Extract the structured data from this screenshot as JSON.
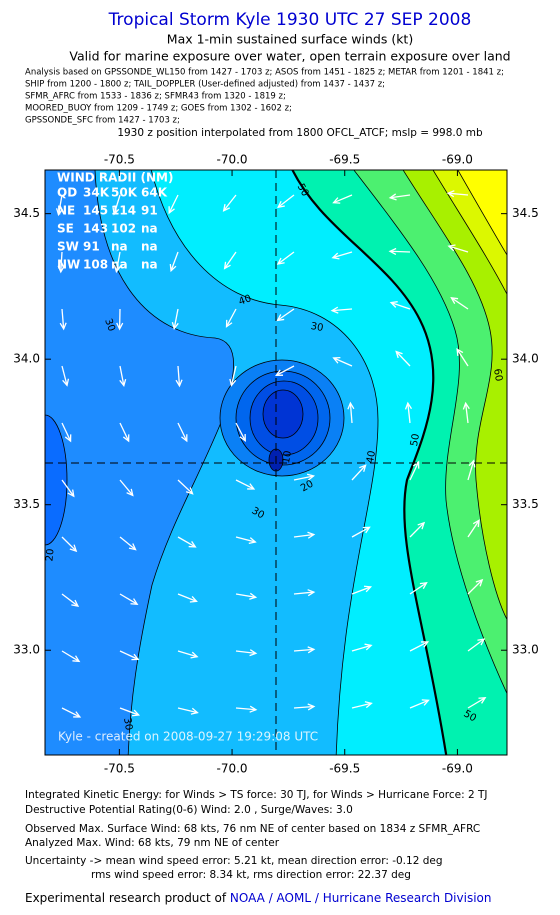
{
  "header": {
    "title": "Tropical Storm Kyle 1930 UTC 27 SEP 2008",
    "subtitle": "Max 1-min sustained surface winds (kt)",
    "validity": "Valid for marine exposure over water, open terrain exposure over land",
    "sources": [
      "Analysis based on  GPSSONDE_WL150 from 1427 - 1703 z;  ASOS from 1451 - 1825 z;  METAR from 1201 - 1841 z;",
      "SHIP from 1200 - 1800 z;  TAIL_DOPPLER (User-defined adjusted) from 1437 - 1437 z;",
      "SFMR_AFRC from 1533 - 1836 z;  SFMR43 from 1320 - 1819 z;",
      "MOORED_BUOY from 1209 - 1749 z;  GOES from 1302 - 1602 z;",
      "GPSSONDE_SFC from 1427 - 1703 z;"
    ],
    "position_note": "1930 z position interpolated from 1800 OFCL_ATCF; mslp = 998.0 mb"
  },
  "map": {
    "xlim": [
      -70.83,
      -68.78
    ],
    "ylim": [
      32.64,
      34.65
    ],
    "xticks": [
      -70.5,
      {
        "value": -70,
        "label": "-70.0"
      },
      -69.5,
      {
        "value": -69,
        "label": "-69.0"
      }
    ],
    "yticks": [
      {
        "value": 33,
        "label": "33.0"
      },
      33.5,
      {
        "value": 34,
        "label": "34.0"
      },
      34.5
    ],
    "wind_radii": {
      "title": "WIND RADII (NM)",
      "header": [
        "QD",
        "34K",
        "50K",
        "64K"
      ],
      "rows": [
        [
          "NE",
          145,
          114,
          91
        ],
        [
          "SE",
          143,
          102,
          "na"
        ],
        [
          "SW",
          91,
          "na",
          "na"
        ],
        [
          "NW",
          108,
          "na",
          "na"
        ]
      ]
    },
    "contour_labels": [
      "50",
      "40",
      "30",
      "30",
      "60",
      "50",
      "40",
      "20",
      "10",
      "30",
      "20",
      "30",
      "50"
    ],
    "watermark": "Kyle - created on 2008-09-27 19:29:08 UTC"
  },
  "footer": {
    "lines": [
      "Integrated Kinetic Energy:  for Winds > TS force: 30 TJ,  for Winds > Hurricane Force: 2 TJ",
      "Destructive Potential Rating(0-6)   Wind: 2.0 , Surge/Waves: 3.0",
      "Observed Max. Surface Wind: 68 kts, 76 nm NE of center based on 1834 z SFMR_AFRC",
      "Analyzed Max. Wind: 68 kts, 79 nm NE of center",
      "Uncertainty -> mean wind speed error: 5.21 kt,   mean direction error:  -0.12 deg",
      "rms wind speed error: 8.34 kt,   rms direction error: 22.37 deg"
    ],
    "credit_prefix": "Experimental research product of ",
    "credit_org": "NOAA / AOML / Hurricane Research Division"
  }
}
